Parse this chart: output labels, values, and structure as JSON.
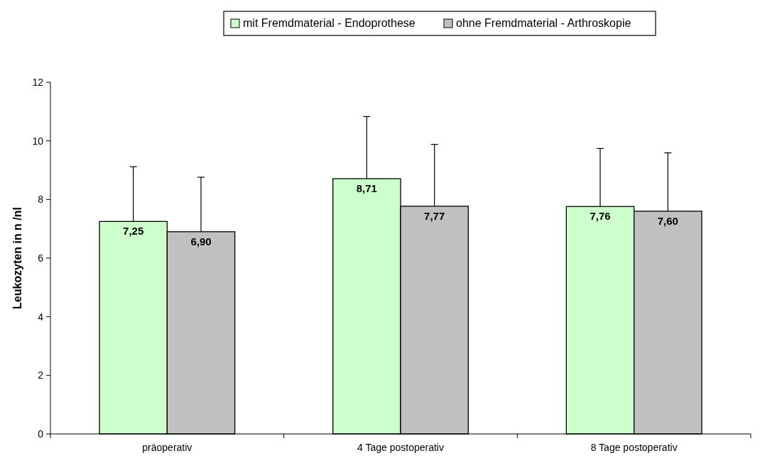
{
  "chart_data": {
    "type": "bar",
    "ylabel": "Leukozyten in n /nl",
    "categories": [
      "präoperativ",
      "4 Tage postoperativ",
      "8 Tage postoperativ"
    ],
    "series": [
      {
        "name": "mit Fremdmaterial - Endoprothese",
        "color": "#ccffcc",
        "values": [
          7.25,
          8.71,
          7.76
        ],
        "value_labels": [
          "7,25",
          "8,71",
          "7,76"
        ],
        "errors": [
          [
            7.25,
            9.12
          ],
          [
            8.71,
            10.83
          ],
          [
            7.76,
            9.74
          ]
        ]
      },
      {
        "name": "ohne Fremdmaterial - Arthroskopie",
        "color": "#c0c0c0",
        "values": [
          6.9,
          7.77,
          7.6
        ],
        "value_labels": [
          "6,90",
          "7,77",
          "7,60"
        ],
        "errors": [
          [
            6.9,
            8.76
          ],
          [
            7.77,
            9.88
          ],
          [
            7.6,
            9.59
          ]
        ]
      }
    ],
    "ylim": [
      0,
      12
    ],
    "yticks": [
      0,
      2,
      4,
      6,
      8,
      10,
      12
    ],
    "grid": false,
    "legend": "top"
  }
}
